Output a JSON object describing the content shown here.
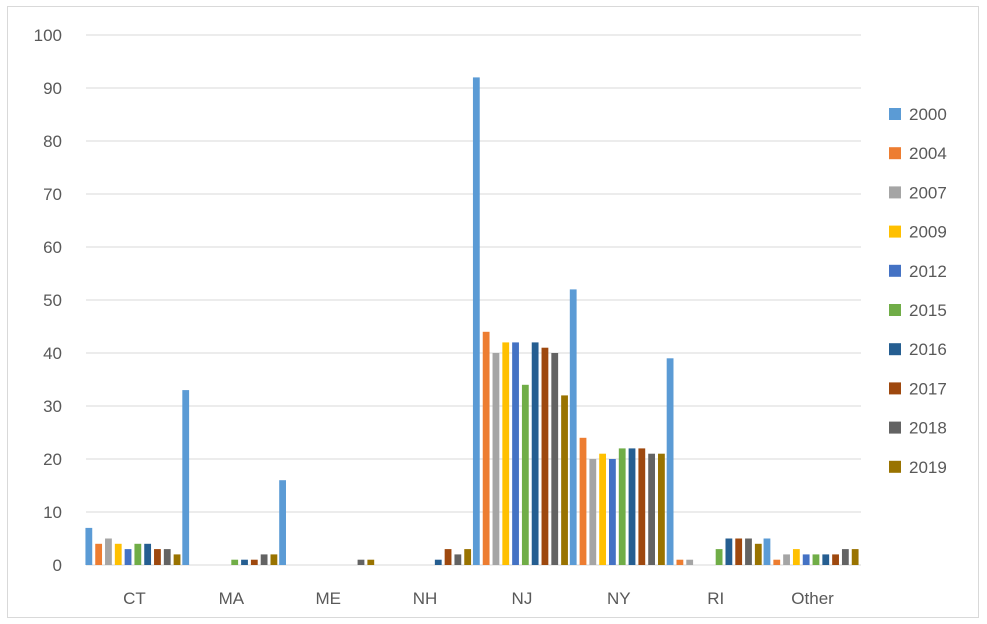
{
  "chart_data": {
    "type": "bar",
    "title": "",
    "xlabel": "",
    "ylabel": "",
    "ylim": [
      0,
      100
    ],
    "yticks": [
      0,
      10,
      20,
      30,
      40,
      50,
      60,
      70,
      80,
      90,
      100
    ],
    "grid": true,
    "legend_position": "right",
    "categories": [
      "CT",
      "MA",
      "ME",
      "NH",
      "NJ",
      "NY",
      "RI",
      "Other"
    ],
    "series": [
      {
        "name": "2000",
        "color": "#5b9bd5",
        "values": [
          7,
          33,
          16,
          0,
          92,
          52,
          39,
          5
        ]
      },
      {
        "name": "2004",
        "color": "#ed7d31",
        "values": [
          4,
          0,
          0,
          0,
          44,
          24,
          1,
          1
        ]
      },
      {
        "name": "2007",
        "color": "#a5a5a5",
        "values": [
          5,
          0,
          0,
          0,
          40,
          20,
          1,
          2
        ]
      },
      {
        "name": "2009",
        "color": "#ffc000",
        "values": [
          4,
          0,
          0,
          0,
          42,
          21,
          0,
          3
        ]
      },
      {
        "name": "2012",
        "color": "#4472c4",
        "values": [
          3,
          0,
          0,
          0,
          42,
          20,
          0,
          2
        ]
      },
      {
        "name": "2015",
        "color": "#70ad47",
        "values": [
          4,
          1,
          0,
          0,
          34,
          22,
          3,
          2
        ]
      },
      {
        "name": "2016",
        "color": "#255e91",
        "values": [
          4,
          1,
          0,
          1,
          42,
          22,
          5,
          2
        ]
      },
      {
        "name": "2017",
        "color": "#9e480e",
        "values": [
          3,
          1,
          0,
          3,
          41,
          22,
          5,
          2
        ]
      },
      {
        "name": "2018",
        "color": "#636363",
        "values": [
          3,
          2,
          1,
          2,
          40,
          21,
          5,
          3
        ]
      },
      {
        "name": "2019",
        "color": "#997300",
        "values": [
          2,
          2,
          1,
          3,
          32,
          21,
          4,
          3
        ]
      }
    ]
  }
}
